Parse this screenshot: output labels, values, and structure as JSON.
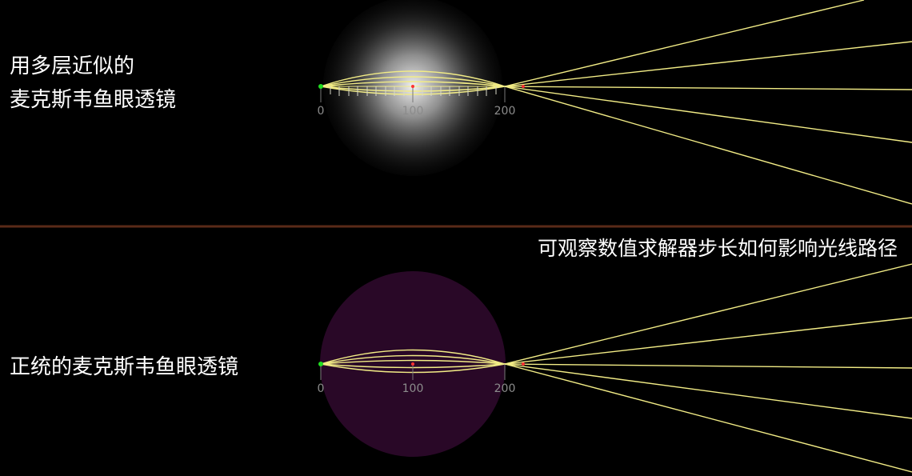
{
  "top_panel": {
    "title_line1": "用多层近似的",
    "title_line2": "麦克斯韦鱼眼透镜",
    "ticks": [
      "0",
      "100",
      "200"
    ]
  },
  "bottom_panel": {
    "title": "正统的麦克斯韦鱼眼透镜",
    "note": "可观察数值求解器步长如何影响光线路径",
    "ticks": [
      "0",
      "100",
      "200"
    ]
  },
  "colors": {
    "background": "#000000",
    "ray": "#f2ec86",
    "divider": "#5a2a18",
    "lens_disk_bottom": "#290827",
    "source_point": "#22dd22",
    "focus_point": "#ff3333",
    "axis_tick": "#777777"
  }
}
